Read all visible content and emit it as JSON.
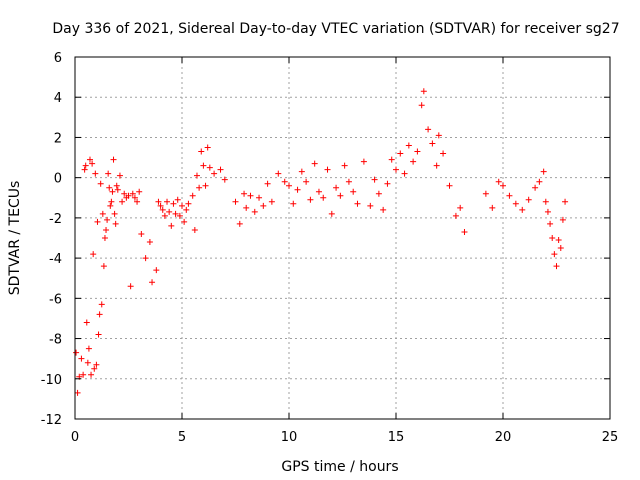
{
  "chart_data": {
    "type": "scatter",
    "title": "Day 336 of 2021, Sidereal Day-to-day VTEC variation (SDTVAR) for receiver sg27",
    "xlabel": "GPS time / hours",
    "ylabel": "SDTVAR / TECUs",
    "xlim": [
      0,
      25
    ],
    "ylim": [
      -12,
      6
    ],
    "xticks": [
      0,
      5,
      10,
      15,
      20,
      25
    ],
    "yticks": [
      -12,
      -10,
      -8,
      -6,
      -4,
      -2,
      0,
      2,
      4,
      6
    ],
    "grid": true,
    "marker": "+",
    "colors": {
      "series": "#ff0000",
      "axis": "#000000",
      "grid": "#a0a0a0"
    },
    "series": [
      {
        "name": "sg27",
        "x": [
          0.05,
          0.12,
          0.2,
          0.3,
          0.38,
          0.45,
          0.5,
          0.55,
          0.6,
          0.65,
          0.7,
          0.75,
          0.8,
          0.85,
          0.9,
          0.95,
          1.0,
          1.05,
          1.1,
          1.15,
          1.2,
          1.25,
          1.3,
          1.35,
          1.4,
          1.45,
          1.5,
          1.55,
          1.6,
          1.65,
          1.7,
          1.75,
          1.8,
          1.85,
          1.9,
          1.95,
          2.0,
          2.1,
          2.2,
          2.3,
          2.4,
          2.5,
          2.6,
          2.7,
          2.8,
          2.9,
          3.0,
          3.1,
          3.3,
          3.5,
          3.6,
          3.8,
          3.9,
          4.0,
          4.1,
          4.2,
          4.3,
          4.4,
          4.5,
          4.6,
          4.7,
          4.8,
          4.9,
          5.0,
          5.1,
          5.2,
          5.3,
          5.5,
          5.6,
          5.7,
          5.8,
          5.9,
          6.0,
          6.1,
          6.2,
          6.3,
          6.5,
          6.8,
          7.0,
          7.5,
          7.7,
          7.9,
          8.0,
          8.2,
          8.4,
          8.6,
          8.8,
          9.0,
          9.2,
          9.5,
          9.8,
          10.0,
          10.2,
          10.4,
          10.6,
          10.8,
          11.0,
          11.2,
          11.4,
          11.6,
          11.8,
          12.0,
          12.2,
          12.4,
          12.6,
          12.8,
          13.0,
          13.2,
          13.5,
          13.8,
          14.0,
          14.2,
          14.4,
          14.6,
          14.8,
          15.0,
          15.2,
          15.4,
          15.6,
          15.8,
          16.0,
          16.2,
          16.3,
          16.5,
          16.7,
          16.9,
          17.0,
          17.2,
          17.5,
          17.8,
          18.0,
          18.2,
          19.2,
          19.5,
          19.8,
          20.0,
          20.3,
          20.6,
          20.9,
          21.2,
          21.5,
          21.7,
          21.9,
          22.0,
          22.1,
          22.2,
          22.3,
          22.4,
          22.5,
          22.6,
          22.7,
          22.8,
          22.9
        ],
        "y": [
          -8.7,
          -10.7,
          -9.9,
          -9.0,
          -9.8,
          0.4,
          0.6,
          -7.2,
          -9.2,
          -8.5,
          0.9,
          -9.8,
          0.7,
          -3.8,
          -9.5,
          0.2,
          -9.3,
          -2.2,
          -7.8,
          -6.8,
          -0.3,
          -6.3,
          -1.8,
          -4.4,
          -3.0,
          -2.6,
          -2.1,
          0.2,
          -0.5,
          -1.4,
          -1.2,
          -0.7,
          0.9,
          -1.8,
          -2.3,
          -0.4,
          -0.6,
          0.1,
          -1.2,
          -0.8,
          -1.0,
          -0.9,
          -5.4,
          -0.8,
          -1.0,
          -1.2,
          -0.7,
          -2.8,
          -4.0,
          -3.2,
          -5.2,
          -4.6,
          -1.2,
          -1.4,
          -1.6,
          -1.9,
          -1.2,
          -1.7,
          -2.4,
          -1.3,
          -1.8,
          -1.1,
          -1.9,
          -1.4,
          -2.2,
          -1.6,
          -1.3,
          -0.9,
          -2.6,
          0.1,
          -0.5,
          1.3,
          0.6,
          -0.4,
          1.5,
          0.5,
          0.2,
          0.4,
          -0.1,
          -1.2,
          -2.3,
          -0.8,
          -1.5,
          -0.9,
          -1.7,
          -1.0,
          -1.4,
          -0.3,
          -1.2,
          0.2,
          -0.2,
          -0.4,
          -1.3,
          -0.6,
          0.3,
          -0.2,
          -1.1,
          0.7,
          -0.7,
          -1.0,
          0.4,
          -1.8,
          -0.5,
          -0.9,
          0.6,
          -0.2,
          -0.7,
          -1.3,
          0.8,
          -1.4,
          -0.1,
          -0.8,
          -1.6,
          -0.3,
          0.9,
          0.4,
          1.2,
          0.2,
          1.6,
          0.8,
          1.3,
          3.6,
          4.3,
          2.4,
          1.7,
          0.6,
          2.1,
          1.2,
          -0.4,
          -1.9,
          -1.5,
          -2.7,
          -0.8,
          -1.5,
          -0.2,
          -0.4,
          -0.9,
          -1.3,
          -1.6,
          -1.1,
          -0.5,
          -0.2,
          0.3,
          -1.2,
          -1.7,
          -2.3,
          -3.0,
          -3.8,
          -4.4,
          -3.1,
          -3.5,
          -2.1,
          -1.2
        ]
      }
    ]
  }
}
